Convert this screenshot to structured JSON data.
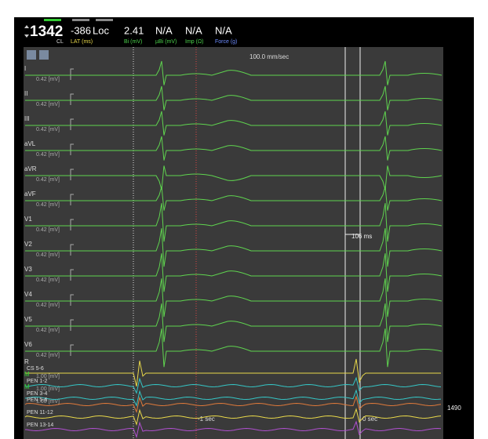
{
  "readouts": [
    {
      "value": "1342",
      "label": "CL"
    },
    {
      "value": "-386",
      "label": "LAT (ms)"
    },
    {
      "value": "Loc",
      "label": ""
    },
    {
      "value": "2.41",
      "label": "Bi (mV)"
    },
    {
      "value": "N/A",
      "label": "µBi (mV)"
    },
    {
      "value": "N/A",
      "label": "Imp (Ω)"
    },
    {
      "value": "N/A",
      "label": "Force (g)"
    }
  ],
  "sweep_speed": "100.0 mm/sec",
  "interval": "106 ms",
  "time_marks": [
    "-1 sec",
    "0 sec"
  ],
  "side_value": "1490",
  "ecg_channels": [
    {
      "name": "I",
      "scale": "0.42 [mV]"
    },
    {
      "name": "II",
      "scale": "0.42 [mV]"
    },
    {
      "name": "III",
      "scale": "0.42 [mV]"
    },
    {
      "name": "aVL",
      "scale": "0.42 [mV]"
    },
    {
      "name": "aVR",
      "scale": "0.42 [mV]"
    },
    {
      "name": "aVF",
      "scale": "0.42 [mV]"
    },
    {
      "name": "V1",
      "scale": "0.42 [mV]"
    },
    {
      "name": "V2",
      "scale": "0.42 [mV]"
    },
    {
      "name": "V3",
      "scale": "0.42 [mV]"
    },
    {
      "name": "V4",
      "scale": "0.42 [mV]"
    },
    {
      "name": "V5",
      "scale": "0.42 [mV]"
    },
    {
      "name": "V6",
      "scale": "0.42 [mV]"
    }
  ],
  "intracardiac_channels": [
    {
      "tag": "R",
      "name": "CS 5-6",
      "scale": "1.00 [mV]"
    },
    {
      "tag": "M",
      "name": "PEN 1-2",
      "scale": "1.00 [mV]"
    },
    {
      "tag": "M",
      "name": "PEN 3-4",
      "scale": "1.00 [mV]"
    },
    {
      "tag": "",
      "name": "PEN 5-6",
      "scale": ""
    },
    {
      "tag": "",
      "name": "PEN 11-12",
      "scale": ""
    },
    {
      "tag": "",
      "name": "PEN 13-14",
      "scale": ""
    }
  ]
}
